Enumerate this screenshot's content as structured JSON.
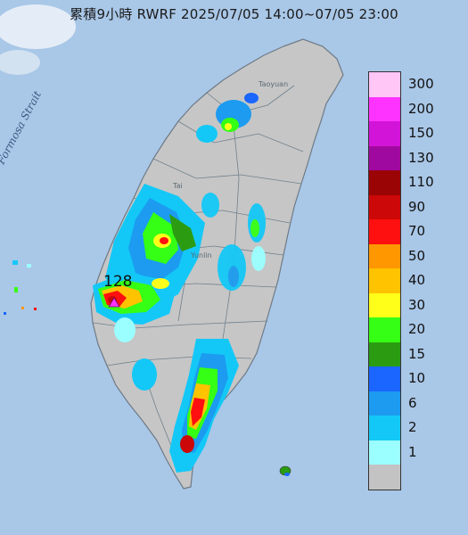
{
  "title": "累積9小時 RWRF 2025/07/05 14:00~07/05 23:00",
  "strait_label": "Formosa Strait",
  "place_labels": [
    "Taoyuan",
    "Yunlin",
    "Tai"
  ],
  "max_marker": "128",
  "legend": {
    "items": [
      {
        "label": "300",
        "color": "#ffc6f6"
      },
      {
        "label": "200",
        "color": "#ff33ff"
      },
      {
        "label": "150",
        "color": "#d114d7"
      },
      {
        "label": "130",
        "color": "#a0099f"
      },
      {
        "label": "110",
        "color": "#9b0404"
      },
      {
        "label": "90",
        "color": "#cc0808"
      },
      {
        "label": "70",
        "color": "#ff1010"
      },
      {
        "label": "50",
        "color": "#ff9700"
      },
      {
        "label": "40",
        "color": "#ffc300"
      },
      {
        "label": "30",
        "color": "#ffff19"
      },
      {
        "label": "20",
        "color": "#35ff14"
      },
      {
        "label": "15",
        "color": "#2b9c12"
      },
      {
        "label": "10",
        "color": "#1a66ff"
      },
      {
        "label": "6",
        "color": "#1c9bf0"
      },
      {
        "label": "2",
        "color": "#13c8f7"
      },
      {
        "label": "1",
        "color": "#9bffff"
      },
      {
        "label": "",
        "color": "#c3c3c3"
      }
    ]
  }
}
